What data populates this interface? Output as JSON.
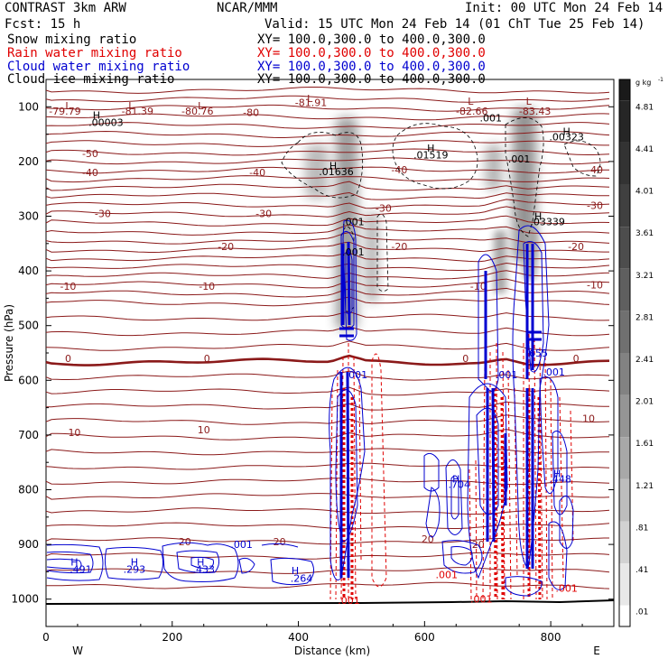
{
  "header": {
    "left1": "CONTRAST  3km ARW",
    "left2": "Fcst:   15 h",
    "center": "NCAR/MMM",
    "init": "Init: 00 UTC Mon 24 Feb 14",
    "valid": "Valid: 15 UTC Mon 24 Feb 14 (01 ChT Tue 25 Feb 14)",
    "fields": [
      {
        "name": "Snow mixing ratio",
        "xy": "XY= 100.0,300.0 to 400.0,300.0",
        "color": "#000000"
      },
      {
        "name": "Rain water mixing ratio",
        "xy": "XY= 100.0,300.0 to 400.0,300.0",
        "color": "#e00000"
      },
      {
        "name": "Cloud water mixing ratio",
        "xy": "XY= 100.0,300.0 to 400.0,300.0",
        "color": "#0000d0"
      },
      {
        "name": "Cloud ice mixing ratio",
        "xy": "XY= 100.0,300.0 to 400.0,300.0",
        "color": "#000000"
      }
    ]
  },
  "chart_data": {
    "type": "contour",
    "xlabel": "Distance (km)",
    "ylabel": "Pressure (hPa)",
    "xlim": [
      0,
      900
    ],
    "ylim": [
      1050,
      50
    ],
    "x_ticks": [
      "0",
      "200",
      "400",
      "600",
      "800"
    ],
    "x_tick_values": [
      0,
      200,
      400,
      600,
      800
    ],
    "y_ticks": [
      "100",
      "200",
      "300",
      "400",
      "500",
      "600",
      "700",
      "800",
      "900",
      "1000"
    ],
    "y_tick_values": [
      100,
      200,
      300,
      400,
      500,
      600,
      700,
      800,
      900,
      1000
    ],
    "x_end_labels": {
      "left": "W",
      "right": "E"
    },
    "colorbar": {
      "unit": "g kg",
      "unit_exp": "-1",
      "labels": [
        "4.81",
        "4.41",
        "4.01",
        "3.61",
        "3.21",
        "2.81",
        "2.41",
        "2.01",
        "1.61",
        "1.21",
        ".81",
        ".41",
        ".01"
      ]
    },
    "temperature_contours": [
      {
        "label": "-80",
        "p": 110,
        "x": 325
      },
      {
        "label": "-50",
        "p": 185,
        "x": 70
      },
      {
        "label": "-40",
        "p": 220,
        "x": 70
      },
      {
        "label": "-40",
        "p": 220,
        "x": 335
      },
      {
        "label": "-40",
        "p": 215,
        "x": 560
      },
      {
        "label": "-40",
        "p": 215,
        "x": 870
      },
      {
        "label": "-30",
        "p": 295,
        "x": 90
      },
      {
        "label": "-30",
        "p": 295,
        "x": 345
      },
      {
        "label": "-30",
        "p": 285,
        "x": 535
      },
      {
        "label": "-30",
        "p": 280,
        "x": 870
      },
      {
        "label": "-20",
        "p": 355,
        "x": 285
      },
      {
        "label": "-20",
        "p": 355,
        "x": 560
      },
      {
        "label": "-20",
        "p": 355,
        "x": 840
      },
      {
        "label": "-10",
        "p": 428,
        "x": 35
      },
      {
        "label": "-10",
        "p": 428,
        "x": 255
      },
      {
        "label": "-10",
        "p": 428,
        "x": 685
      },
      {
        "label": "-10",
        "p": 425,
        "x": 870
      },
      {
        "label": "0",
        "p": 560,
        "x": 35
      },
      {
        "label": "0",
        "p": 560,
        "x": 255
      },
      {
        "label": "0",
        "p": 560,
        "x": 665
      },
      {
        "label": "0",
        "p": 560,
        "x": 840
      },
      {
        "label": "10",
        "p": 695,
        "x": 45
      },
      {
        "label": "10",
        "p": 690,
        "x": 250
      },
      {
        "label": "10",
        "p": 670,
        "x": 860
      },
      {
        "label": "20",
        "p": 895,
        "x": 220
      },
      {
        "label": "20",
        "p": 895,
        "x": 370
      },
      {
        "label": "20",
        "p": 890,
        "x": 605
      },
      {
        "label": "20",
        "p": 900,
        "x": 685
      }
    ],
    "extrema_labels": [
      {
        "text": "L",
        "p": 98,
        "x": 35,
        "color": "#8b1a1a"
      },
      {
        "text": "-79.79",
        "p": 108,
        "x": 30,
        "color": "#8b1a1a"
      },
      {
        "text": "L",
        "p": 98,
        "x": 135,
        "color": "#8b1a1a"
      },
      {
        "text": "-81.39",
        "p": 108,
        "x": 145,
        "color": "#8b1a1a"
      },
      {
        "text": "L",
        "p": 98,
        "x": 245,
        "color": "#8b1a1a"
      },
      {
        "text": "-80.76",
        "p": 108,
        "x": 240,
        "color": "#8b1a1a"
      },
      {
        "text": "L",
        "p": 85,
        "x": 418,
        "color": "#8b1a1a"
      },
      {
        "text": "-81.91",
        "p": 92,
        "x": 420,
        "color": "#8b1a1a"
      },
      {
        "text": "L",
        "p": 90,
        "x": 673,
        "color": "#8b1a1a"
      },
      {
        "text": "-82.66",
        "p": 108,
        "x": 675,
        "color": "#8b1a1a"
      },
      {
        "text": "L",
        "p": 90,
        "x": 765,
        "color": "#8b1a1a"
      },
      {
        "text": "-83.43",
        "p": 108,
        "x": 775,
        "color": "#8b1a1a"
      },
      {
        "text": "H",
        "p": 115,
        "x": 80,
        "color": "#000000"
      },
      {
        "text": ".00003",
        "p": 128,
        "x": 95,
        "color": "#000000"
      },
      {
        "text": ".001",
        "p": 120,
        "x": 705,
        "color": "#000000"
      },
      {
        "text": "H",
        "p": 145,
        "x": 825,
        "color": "#000000"
      },
      {
        "text": ".00323",
        "p": 155,
        "x": 825,
        "color": "#000000"
      },
      {
        "text": "H",
        "p": 175,
        "x": 610,
        "color": "#000000"
      },
      {
        "text": ".01519",
        "p": 188,
        "x": 610,
        "color": "#000000"
      },
      {
        "text": ".001",
        "p": 195,
        "x": 750,
        "color": "#000000"
      },
      {
        "text": "H",
        "p": 208,
        "x": 455,
        "color": "#000000"
      },
      {
        "text": ".01636",
        "p": 218,
        "x": 460,
        "color": "#000000"
      },
      {
        "text": ".001",
        "p": 310,
        "x": 487,
        "color": "#000000"
      },
      {
        "text": "H",
        "p": 300,
        "x": 780,
        "color": "#000000"
      },
      {
        "text": ".03339",
        "p": 310,
        "x": 795,
        "color": "#000000"
      },
      {
        "text": ".001",
        "p": 365,
        "x": 487,
        "color": "#000000"
      },
      {
        "text": ".001",
        "p": 590,
        "x": 492,
        "color": "#0000d0"
      },
      {
        "text": ".001",
        "p": 590,
        "x": 730,
        "color": "#0000d0"
      },
      {
        "text": ".001",
        "p": 585,
        "x": 805,
        "color": "#0000d0"
      },
      {
        "text": ".655",
        "p": 550,
        "x": 778,
        "color": "#0000d0"
      },
      {
        "text": "H",
        "p": 780,
        "x": 650,
        "color": "#0000d0"
      },
      {
        "text": ".704",
        "p": 790,
        "x": 655,
        "color": "#0000d0"
      },
      {
        "text": "H",
        "p": 770,
        "x": 810,
        "color": "#0000d0"
      },
      {
        "text": ".448",
        "p": 780,
        "x": 815,
        "color": "#0000d0"
      },
      {
        "text": "H",
        "p": 932,
        "x": 45,
        "color": "#0000d0"
      },
      {
        "text": ".491",
        "p": 945,
        "x": 55,
        "color": "#0000d0"
      },
      {
        "text": "H",
        "p": 932,
        "x": 140,
        "color": "#0000d0"
      },
      {
        "text": ".293",
        "p": 945,
        "x": 140,
        "color": "#0000d0"
      },
      {
        "text": "H",
        "p": 932,
        "x": 245,
        "color": "#0000d0"
      },
      {
        "text": ".433",
        "p": 945,
        "x": 250,
        "color": "#0000d0"
      },
      {
        "text": ".001",
        "p": 900,
        "x": 310,
        "color": "#0000d0"
      },
      {
        "text": "H",
        "p": 948,
        "x": 395,
        "color": "#0000d0"
      },
      {
        "text": ".264",
        "p": 962,
        "x": 405,
        "color": "#0000d0"
      },
      {
        "text": ".001",
        "p": 1002,
        "x": 480,
        "color": "#e00000"
      },
      {
        "text": ".001",
        "p": 955,
        "x": 635,
        "color": "#e00000"
      },
      {
        "text": ".001",
        "p": 1000,
        "x": 690,
        "color": "#e00000"
      },
      {
        "text": ".001",
        "p": 980,
        "x": 825,
        "color": "#e00000"
      }
    ]
  }
}
